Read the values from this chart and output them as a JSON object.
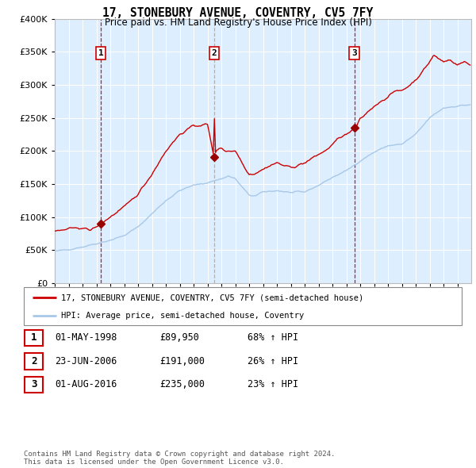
{
  "title": "17, STONEBURY AVENUE, COVENTRY, CV5 7FY",
  "subtitle": "Price paid vs. HM Land Registry's House Price Index (HPI)",
  "legend_line1": "17, STONEBURY AVENUE, COVENTRY, CV5 7FY (semi-detached house)",
  "legend_line2": "HPI: Average price, semi-detached house, Coventry",
  "table_rows": [
    [
      "1",
      "01-MAY-1998",
      "£89,950",
      "68% ↑ HPI"
    ],
    [
      "2",
      "23-JUN-2006",
      "£191,000",
      "26% ↑ HPI"
    ],
    [
      "3",
      "01-AUG-2016",
      "£235,000",
      "23% ↑ HPI"
    ]
  ],
  "footer": "Contains HM Land Registry data © Crown copyright and database right 2024.\nThis data is licensed under the Open Government Licence v3.0.",
  "sale_dates": [
    1998.33,
    2006.47,
    2016.58
  ],
  "sale_prices": [
    89950,
    191000,
    235000
  ],
  "sale_labels": [
    "1",
    "2",
    "3"
  ],
  "hpi_line_color": "#a8c8e8",
  "price_line_color": "#cc0000",
  "marker_color": "#990000",
  "plot_bg": "#ddeeff",
  "grid_color": "#ffffff",
  "ylim": [
    0,
    400000
  ],
  "xlim_start": 1995.0,
  "xlim_end": 2025.0,
  "ytick_values": [
    0,
    50000,
    100000,
    150000,
    200000,
    250000,
    300000,
    350000,
    400000
  ]
}
